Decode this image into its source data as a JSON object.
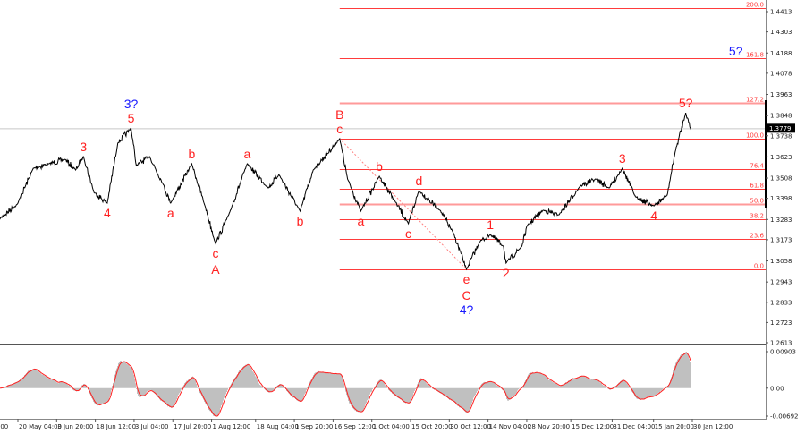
{
  "chart_data": {
    "type": "line",
    "title": "",
    "price_axis": {
      "ticks": [
        "1.4413",
        "1.4303",
        "1.4188",
        "1.4078",
        "1.3963",
        "1.3848",
        "1.3738",
        "1.3623",
        "1.3508",
        "1.3398",
        "1.3283",
        "1.3173",
        "1.3058",
        "1.2943",
        "1.2833",
        "1.2723",
        "1.2613"
      ],
      "ylim": [
        1.2613,
        1.4413
      ],
      "current_price": "1.3779"
    },
    "time_axis": {
      "ticks": [
        ":00",
        "20 May 04:00",
        "3 Jun 20:00",
        "18 Jun 12:00",
        "3 Jul 04:00",
        "17 Jul 20:00",
        "1 Aug 12:00",
        "18 Aug 04:00",
        "1 Sep 20:00",
        "16 Sep 12:00",
        "1 Oct 04:00",
        "15 Oct 20:00",
        "30 Oct 12:00",
        "14 Nov 04:00",
        "28 Nov 20:00",
        "15 Dec 12:00",
        "31 Dec 04:00",
        "15 Jan 20:00",
        "30 Jan 12:00"
      ]
    },
    "price_series": [
      [
        "13 May",
        1.3284
      ],
      [
        "20 May",
        1.3367
      ],
      [
        "26 May",
        1.3561
      ],
      [
        "1 Jun",
        1.3586
      ],
      [
        "7 Jun",
        1.361
      ],
      [
        "11 Jun",
        1.3552
      ],
      [
        "14 Jun",
        1.3625
      ],
      [
        "18 Jun",
        1.343
      ],
      [
        "23 Jun",
        1.3372
      ],
      [
        "27 Jun",
        1.3698
      ],
      [
        "2 Jul",
        1.378
      ],
      [
        "4 Jul",
        1.3576
      ],
      [
        "9 Jul",
        1.3625
      ],
      [
        "14 Jul",
        1.3479
      ],
      [
        "17 Jul",
        1.3372
      ],
      [
        "25 Jul",
        1.3586
      ],
      [
        "30 Jul",
        1.3357
      ],
      [
        "3 Aug",
        1.3153
      ],
      [
        "8 Aug",
        1.3308
      ],
      [
        "15 Aug",
        1.3586
      ],
      [
        "23 Aug",
        1.3454
      ],
      [
        "27 Aug",
        1.3527
      ],
      [
        "4 Sep",
        1.3328
      ],
      [
        "9 Sep",
        1.3552
      ],
      [
        "19 Sep",
        1.3722
      ],
      [
        "22 Sep",
        1.3503
      ],
      [
        "27 Sep",
        1.3328
      ],
      [
        "4 Oct",
        1.3518
      ],
      [
        "10 Oct",
        1.3381
      ],
      [
        "15 Oct",
        1.326
      ],
      [
        "19 Oct",
        1.344
      ],
      [
        "27 Oct",
        1.3333
      ],
      [
        "1 Nov",
        1.3211
      ],
      [
        "6 Nov",
        1.3012
      ],
      [
        "11 Nov",
        1.3162
      ],
      [
        "15 Nov",
        1.3201
      ],
      [
        "20 Nov",
        1.3138
      ],
      [
        "21 Nov",
        1.3046
      ],
      [
        "27 Nov",
        1.3138
      ],
      [
        "29 Nov",
        1.325
      ],
      [
        "5 Dec",
        1.3333
      ],
      [
        "11 Dec",
        1.3308
      ],
      [
        "19 Dec",
        1.3464
      ],
      [
        "25 Dec",
        1.3503
      ],
      [
        "30 Dec",
        1.3454
      ],
      [
        "4 Jan",
        1.3561
      ],
      [
        "9 Jan",
        1.3406
      ],
      [
        "16 Jan",
        1.3357
      ],
      [
        "21 Jan",
        1.3415
      ],
      [
        "24 Jan",
        1.3649
      ],
      [
        "28 Jan",
        1.3863
      ],
      [
        "30 Jan",
        1.377
      ]
    ],
    "fibonacci": {
      "from": {
        "date": "6 Nov",
        "price": 1.3012
      },
      "to": {
        "date": "19 Sep",
        "price": 1.3722
      },
      "color": "#ff3b3b",
      "levels": [
        {
          "label": "200.0",
          "ratio": 2.0
        },
        {
          "label": "161.8",
          "ratio": 1.618
        },
        {
          "label": "127.2",
          "ratio": 1.272
        },
        {
          "label": "100.0",
          "ratio": 1.0
        },
        {
          "label": "76.4",
          "ratio": 0.764
        },
        {
          "label": "61.8",
          "ratio": 0.618
        },
        {
          "label": "50.0",
          "ratio": 0.5
        },
        {
          "label": "38.2",
          "ratio": 0.382
        },
        {
          "label": "23.6",
          "ratio": 0.236
        },
        {
          "label": "0.0",
          "ratio": 0.0
        }
      ]
    },
    "trendline": {
      "from": {
        "date": "19 Sep",
        "price": 1.3722
      },
      "to": {
        "date": "6 Nov",
        "price": 1.3012
      },
      "style": "dashed",
      "color": "#ff8080"
    },
    "wave_labels": [
      {
        "text": "3",
        "date": "14 Jun",
        "pos": "above",
        "level": 0,
        "color": "#ff2020"
      },
      {
        "text": "4",
        "date": "23 Jun",
        "pos": "below",
        "level": 0,
        "color": "#ff2020"
      },
      {
        "text": "5",
        "date": "2 Jul",
        "pos": "above",
        "level": 0,
        "color": "#ff2020"
      },
      {
        "text": "3?",
        "date": "2 Jul",
        "pos": "above",
        "level": 1,
        "color": "#1a1aff"
      },
      {
        "text": "a",
        "date": "17 Jul",
        "pos": "below",
        "level": 0,
        "color": "#ff2020"
      },
      {
        "text": "b",
        "date": "25 Jul",
        "pos": "above",
        "level": 0,
        "color": "#ff2020"
      },
      {
        "text": "c",
        "date": "3 Aug",
        "pos": "below",
        "level": 0,
        "color": "#ff2020"
      },
      {
        "text": "A",
        "date": "3 Aug",
        "pos": "below",
        "level": 1,
        "color": "#ff2020"
      },
      {
        "text": "a",
        "date": "15 Aug",
        "pos": "above",
        "level": 0,
        "color": "#ff2020"
      },
      {
        "text": "b",
        "date": "4 Sep",
        "pos": "below",
        "level": 0,
        "color": "#ff2020"
      },
      {
        "text": "c",
        "date": "19 Sep",
        "pos": "above",
        "level": 0,
        "color": "#ff2020"
      },
      {
        "text": "B",
        "date": "19 Sep",
        "pos": "above",
        "level": 1,
        "color": "#ff2020"
      },
      {
        "text": "a",
        "date": "27 Sep",
        "pos": "below",
        "level": 0,
        "color": "#ff2020"
      },
      {
        "text": "b",
        "date": "4 Oct",
        "pos": "above",
        "level": 0,
        "color": "#ff2020"
      },
      {
        "text": "c",
        "date": "15 Oct",
        "pos": "below",
        "level": 0,
        "color": "#ff2020"
      },
      {
        "text": "d",
        "date": "19 Oct",
        "pos": "above",
        "level": 0,
        "color": "#ff2020"
      },
      {
        "text": "e",
        "date": "6 Nov",
        "pos": "below",
        "level": 0,
        "color": "#ff2020"
      },
      {
        "text": "C",
        "date": "6 Nov",
        "pos": "below",
        "level": 1,
        "color": "#ff2020"
      },
      {
        "text": "4?",
        "date": "6 Nov",
        "pos": "below",
        "level": 2,
        "color": "#1a1aff"
      },
      {
        "text": "1",
        "date": "15 Nov",
        "pos": "above",
        "level": 0,
        "color": "#ff2020"
      },
      {
        "text": "2",
        "date": "21 Nov",
        "pos": "below",
        "level": 0,
        "color": "#ff2020"
      },
      {
        "text": "3",
        "date": "4 Jan",
        "pos": "above",
        "level": 0,
        "color": "#ff2020"
      },
      {
        "text": "4",
        "date": "16 Jan",
        "pos": "below",
        "level": 0,
        "color": "#ff2020"
      },
      {
        "text": "5?",
        "date": "28 Jan",
        "pos": "above",
        "level": 0,
        "color": "#ff2020"
      }
    ],
    "free_labels": [
      {
        "text": "5?",
        "date": "16 Feb",
        "price": 1.4199,
        "color": "#1a1aff"
      }
    ],
    "oscillator": {
      "type": "histogram+signal",
      "ticks": [
        "0.00903",
        "0.00",
        "-0.00692"
      ],
      "ylim": [
        -0.00692,
        0.00903
      ],
      "histogram_color": "#c0c0c0",
      "signal_color": "#ff2020"
    },
    "colors": {
      "price_line": "#000000",
      "current_price_line": "#c0c0c0",
      "axis": "#808080"
    }
  }
}
